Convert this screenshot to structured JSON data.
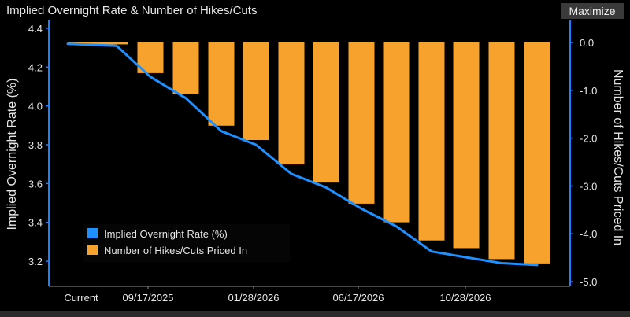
{
  "header": {
    "title": "Implied Overnight Rate & Number of Hikes/Cuts",
    "maximize_label": "Maximize"
  },
  "colors": {
    "background": "#000000",
    "line": "#1e90ff",
    "bar": "#f7a22c",
    "axis": "#1e7fff",
    "text": "#e6e6e6"
  },
  "chart_data": {
    "type": "bar",
    "x_tick_labels": [
      "Current",
      "09/17/2025",
      "01/28/2026",
      "06/17/2026",
      "10/28/2026"
    ],
    "left_axis": {
      "label": "Implied Overnight Rate (%)",
      "ylim": [
        3.16,
        4.42
      ],
      "ticks": [
        "4.4",
        "4.2",
        "4.0",
        "3.8",
        "3.6",
        "3.4",
        "3.2"
      ]
    },
    "right_axis": {
      "label": "Number of Hikes/Cuts Priced In",
      "ylim": [
        -4.9,
        0.2
      ],
      "ticks": [
        "0.0",
        "-1.0",
        "-2.0",
        "-3.0",
        "-4.0",
        "-5.0"
      ]
    },
    "legend": {
      "placement": "bottom-left",
      "items": [
        {
          "label": "Implied Overnight Rate (%)",
          "color": "#1e90ff"
        },
        {
          "label": "Number of Hikes/Cuts Priced In",
          "color": "#f7a22c"
        }
      ]
    },
    "series": [
      {
        "name": "Number of Hikes/Cuts Priced In",
        "type": "bar",
        "values": [
          -0.04,
          -0.64,
          -1.08,
          -1.74,
          -2.04,
          -2.55,
          -2.93,
          -3.37,
          -3.76,
          -4.14,
          -4.3,
          -4.53,
          -4.62
        ]
      },
      {
        "name": "Implied Overnight Rate (%)",
        "type": "line",
        "values": [
          4.32,
          4.31,
          4.15,
          4.04,
          3.87,
          3.8,
          3.65,
          3.58,
          3.47,
          3.38,
          3.25,
          3.22,
          3.19,
          3.18
        ]
      }
    ]
  }
}
